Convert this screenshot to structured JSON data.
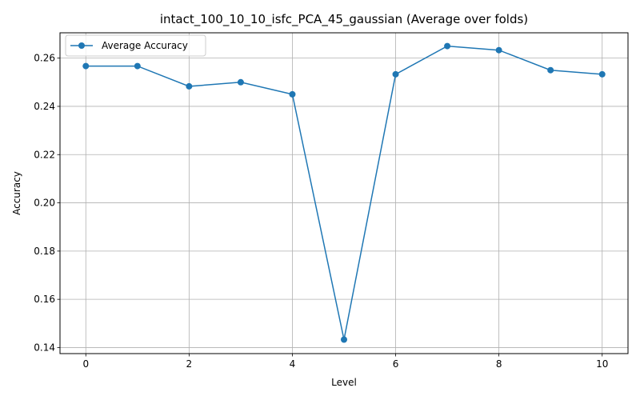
{
  "chart_data": {
    "type": "line",
    "title": "intact_100_10_10_isfc_PCA_45_gaussian (Average over folds)",
    "xlabel": "Level",
    "ylabel": "Accuracy",
    "xlim": [
      -0.5,
      10.5
    ],
    "ylim": [
      0.1375,
      0.2705
    ],
    "xticks": [
      0,
      2,
      4,
      6,
      8,
      10
    ],
    "yticks": [
      0.14,
      0.16,
      0.18,
      0.2,
      0.22,
      0.24,
      0.26
    ],
    "ytick_labels": [
      "0.14",
      "0.16",
      "0.18",
      "0.20",
      "0.22",
      "0.24",
      "0.26"
    ],
    "grid": true,
    "legend_position": "top-left",
    "series": [
      {
        "name": "Average Accuracy",
        "color": "#1f77b4",
        "marker": "circle",
        "x": [
          0,
          1,
          2,
          3,
          4,
          5,
          6,
          7,
          8,
          9,
          10
        ],
        "y": [
          0.2567,
          0.2567,
          0.2483,
          0.25,
          0.245,
          0.1433,
          0.2533,
          0.265,
          0.2633,
          0.255,
          0.2533
        ]
      }
    ]
  }
}
